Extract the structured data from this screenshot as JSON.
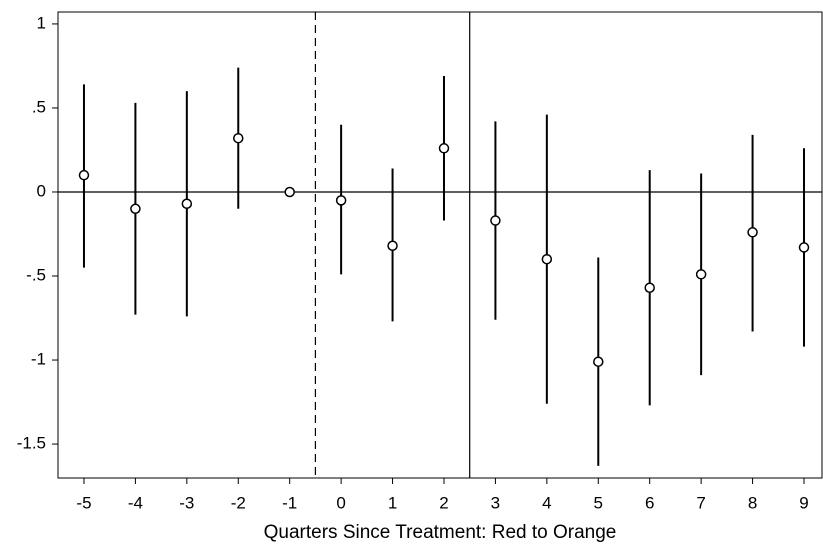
{
  "chart_data": {
    "type": "errorbar",
    "x_label": "Quarters Since Treatment: Red to Orange",
    "x": [
      -5,
      -4,
      -3,
      -2,
      -1,
      0,
      1,
      2,
      3,
      4,
      5,
      6,
      7,
      8,
      9
    ],
    "series": [
      {
        "values": [
          0.1,
          -0.1,
          -0.07,
          0.32,
          0,
          -0.05,
          -0.32,
          0.26,
          -0.17,
          -0.4,
          -1.01,
          -0.57,
          -0.49,
          -0.24,
          -0.33
        ],
        "lower": [
          -0.45,
          -0.73,
          -0.74,
          -0.1,
          0,
          -0.49,
          -0.77,
          -0.17,
          -0.76,
          -1.26,
          -1.63,
          -1.27,
          -1.09,
          -0.83,
          -0.92
        ],
        "upper": [
          0.64,
          0.53,
          0.6,
          0.74,
          0,
          0.4,
          0.14,
          0.69,
          0.42,
          0.46,
          -0.39,
          0.13,
          0.11,
          0.34,
          0.26
        ],
        "color": "#000000"
      }
    ],
    "xlim": [
      -5.505,
      9.35
    ],
    "ylim": [
      -1.702,
      1.071
    ],
    "xticks": [
      -5,
      -4,
      -3,
      -2,
      -1,
      0,
      1,
      2,
      3,
      4,
      5,
      6,
      7,
      8,
      9
    ],
    "yticks": [
      {
        "value": 1,
        "label": "1"
      },
      {
        "value": 0.5,
        "label": ".5"
      },
      {
        "value": 0,
        "label": "0"
      },
      {
        "value": -0.5,
        "label": "-.5"
      },
      {
        "value": -1,
        "label": "-1"
      },
      {
        "value": -1.5,
        "label": "-1.5"
      }
    ],
    "hline": 0,
    "vlines": [
      {
        "x": -0.5,
        "style": "dashed"
      },
      {
        "x": 2.5,
        "style": "solid"
      }
    ]
  }
}
